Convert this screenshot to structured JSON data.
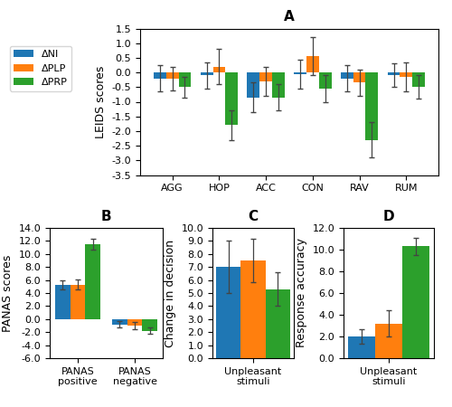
{
  "chart_data": [
    {
      "type": "bar",
      "title": "A",
      "ylabel": "LEIDS scores",
      "categories": [
        "AGG",
        "HOP",
        "ACC",
        "CON",
        "RAV",
        "RUM"
      ],
      "ylim": [
        -3.5,
        1.5
      ],
      "yticks": [
        -3.5,
        {
          "value": -3.0,
          "label": "-3.0"
        },
        -2.5,
        {
          "value": -2.0,
          "label": "-2.0"
        },
        -1.5,
        {
          "value": -1.0,
          "label": "-1.0"
        },
        -0.5,
        {
          "value": 0.0,
          "label": "0.0"
        },
        0.5,
        {
          "value": 1.0,
          "label": "1.0"
        },
        1.5
      ],
      "legend": "upper left",
      "series": [
        {
          "name": "ΔNI",
          "values": [
            -0.2,
            -0.1,
            -0.85,
            -0.05,
            -0.2,
            -0.1
          ],
          "yerr": [
            0.45,
            0.45,
            0.5,
            0.5,
            0.45,
            0.4
          ]
        },
        {
          "name": "ΔPLP",
          "values": [
            -0.2,
            0.2,
            -0.3,
            0.55,
            -0.35,
            -0.15
          ],
          "yerr": [
            0.4,
            0.6,
            0.5,
            0.65,
            0.45,
            0.5
          ]
        },
        {
          "name": "ΔPRP",
          "values": [
            -0.5,
            -1.8,
            -0.85,
            -0.55,
            -2.3,
            -0.5
          ],
          "yerr": [
            0.35,
            0.5,
            0.45,
            0.45,
            0.6,
            0.4
          ]
        }
      ]
    },
    {
      "type": "bar",
      "title": "B",
      "ylabel": "PANAS scores",
      "categories": [
        "PANAS\npositive",
        "PANAS\nnegative"
      ],
      "ylim": [
        -6.0,
        14.0
      ],
      "yticks": [
        {
          "value": -6.0,
          "label": "-6.0"
        },
        {
          "value": -4.0,
          "label": "-4.0"
        },
        {
          "value": -2.0,
          "label": "-2.0"
        },
        {
          "value": 0.0,
          "label": "0.0"
        },
        {
          "value": 2.0,
          "label": "2.0"
        },
        {
          "value": 4.0,
          "label": "4.0"
        },
        {
          "value": 6.0,
          "label": "6.0"
        },
        {
          "value": 8.0,
          "label": "8.0"
        },
        {
          "value": 10.0,
          "label": "10.0"
        },
        {
          "value": 12.0,
          "label": "12.0"
        },
        {
          "value": 14.0,
          "label": "14.0"
        }
      ],
      "series": [
        {
          "name": "ΔNI",
          "values": [
            5.2,
            -0.8
          ],
          "yerr": [
            0.7,
            0.5
          ]
        },
        {
          "name": "ΔPLP",
          "values": [
            5.3,
            -1.0
          ],
          "yerr": [
            0.8,
            0.5
          ]
        },
        {
          "name": "ΔPRP",
          "values": [
            11.5,
            -1.8
          ],
          "yerr": [
            0.9,
            0.5
          ]
        }
      ]
    },
    {
      "type": "bar",
      "title": "C",
      "ylabel": "Change in decision",
      "categories": [
        "Unpleasant\nstimuli"
      ],
      "ylim": [
        0.0,
        10.0
      ],
      "yticks": [
        {
          "value": 0.0,
          "label": "0.0"
        },
        {
          "value": 1.0,
          "label": "1.0"
        },
        {
          "value": 2.0,
          "label": "2.0"
        },
        {
          "value": 3.0,
          "label": "3.0"
        },
        {
          "value": 4.0,
          "label": "4.0"
        },
        {
          "value": 5.0,
          "label": "5.0"
        },
        {
          "value": 6.0,
          "label": "6.0"
        },
        {
          "value": 7.0,
          "label": "7.0"
        },
        {
          "value": 8.0,
          "label": "8.0"
        },
        {
          "value": 9.0,
          "label": "9.0"
        },
        {
          "value": 10.0,
          "label": "10.0"
        }
      ],
      "series": [
        {
          "name": "ΔNI",
          "values": [
            7.0
          ],
          "yerr": [
            2.0
          ]
        },
        {
          "name": "ΔPLP",
          "values": [
            7.5
          ],
          "yerr": [
            1.7
          ]
        },
        {
          "name": "ΔPRP",
          "values": [
            5.3
          ],
          "yerr": [
            1.3
          ]
        }
      ]
    },
    {
      "type": "bar",
      "title": "D",
      "ylabel": "Response accuracy",
      "categories": [
        "Unpleasant\nstimuli"
      ],
      "ylim": [
        0.0,
        12.0
      ],
      "yticks": [
        {
          "value": 0.0,
          "label": "0.0"
        },
        {
          "value": 2.0,
          "label": "2.0"
        },
        {
          "value": 4.0,
          "label": "4.0"
        },
        {
          "value": 6.0,
          "label": "6.0"
        },
        {
          "value": 8.0,
          "label": "8.0"
        },
        {
          "value": 10.0,
          "label": "10.0"
        },
        {
          "value": 12.0,
          "label": "12.0"
        }
      ],
      "series": [
        {
          "name": "ΔNI",
          "values": [
            2.0
          ],
          "yerr": [
            0.7
          ]
        },
        {
          "name": "ΔPLP",
          "values": [
            3.2
          ],
          "yerr": [
            1.2
          ]
        },
        {
          "name": "ΔPRP",
          "values": [
            10.3
          ],
          "yerr": [
            0.8
          ]
        }
      ]
    }
  ]
}
